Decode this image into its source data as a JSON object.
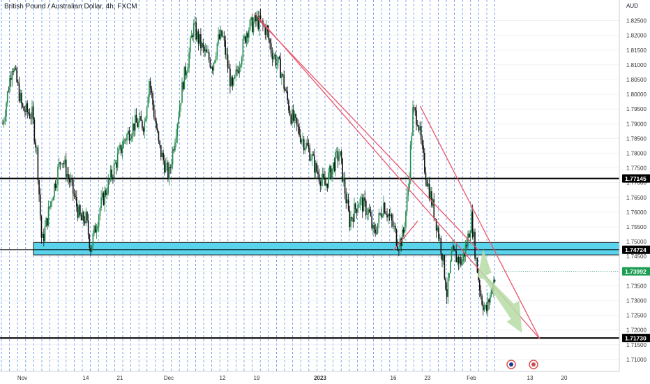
{
  "title": "British Pound / Australian Dollar, 4h, FXCM",
  "currency": "AUD",
  "colors": {
    "grid": "#3d7ce8",
    "up": "#1e8a4a",
    "down": "#111111",
    "trendline": "#e8566b",
    "zone_fill": "#5ad3ec",
    "zone_stroke": "#1a1a1a",
    "hline": "#000000",
    "arrow": "#b7dca6",
    "price_label": "#1b9d52",
    "axis_text": "#333333"
  },
  "chart_data": {
    "type": "candlestick",
    "title": "British Pound / Australian Dollar, 4h, FXCM",
    "ylabel": "AUD",
    "ylim": [
      1.705,
      1.831
    ],
    "y_ticks": [
      "1.82500",
      "1.82000",
      "1.81500",
      "1.81000",
      "1.80500",
      "1.80000",
      "1.79500",
      "1.79000",
      "1.78500",
      "1.78000",
      "1.77500",
      "1.77000",
      "1.76500",
      "1.76000",
      "1.75500",
      "1.75000",
      "1.74500",
      "1.74000",
      "1.73500",
      "1.73000",
      "1.72500",
      "1.72000",
      "1.71500",
      "1.71000"
    ],
    "x_ticks": [
      {
        "label": "Nov",
        "t": 0
      },
      {
        "label": "14",
        "t": 13
      },
      {
        "label": "21",
        "t": 20
      },
      {
        "label": "Dec",
        "t": 30
      },
      {
        "label": "12",
        "t": 41
      },
      {
        "label": "19",
        "t": 48
      },
      {
        "label": "2023",
        "t": 61
      },
      {
        "label": "16",
        "t": 76
      },
      {
        "label": "23",
        "t": 83
      },
      {
        "label": "Feb",
        "t": 92
      },
      {
        "label": "13",
        "t": 104
      },
      {
        "label": "20",
        "t": 111
      }
    ],
    "price_path": [
      [
        -4,
        1.79
      ],
      [
        -2,
        1.811
      ],
      [
        0,
        1.795
      ],
      [
        2,
        1.793
      ],
      [
        3,
        1.78
      ],
      [
        4,
        1.749
      ],
      [
        6,
        1.765
      ],
      [
        8,
        1.779
      ],
      [
        10,
        1.769
      ],
      [
        12,
        1.757
      ],
      [
        13,
        1.758
      ],
      [
        14,
        1.748
      ],
      [
        16,
        1.762
      ],
      [
        19,
        1.776
      ],
      [
        21,
        1.785
      ],
      [
        23,
        1.79
      ],
      [
        25,
        1.79
      ],
      [
        26,
        1.805
      ],
      [
        28,
        1.782
      ],
      [
        30,
        1.772
      ],
      [
        33,
        1.805
      ],
      [
        34,
        1.812
      ],
      [
        35,
        1.823
      ],
      [
        37,
        1.815
      ],
      [
        39,
        1.81
      ],
      [
        40,
        1.818
      ],
      [
        41,
        1.82
      ],
      [
        43,
        1.801
      ],
      [
        44,
        1.808
      ],
      [
        46,
        1.822
      ],
      [
        48,
        1.825
      ],
      [
        50,
        1.822
      ],
      [
        51,
        1.815
      ],
      [
        53,
        1.808
      ],
      [
        54,
        1.8
      ],
      [
        55,
        1.793
      ],
      [
        57,
        1.786
      ],
      [
        59,
        1.78
      ],
      [
        60,
        1.775
      ],
      [
        62,
        1.769
      ],
      [
        64,
        1.777
      ],
      [
        65,
        1.78
      ],
      [
        66,
        1.768
      ],
      [
        67,
        1.757
      ],
      [
        69,
        1.764
      ],
      [
        71,
        1.76
      ],
      [
        72,
        1.752
      ],
      [
        74,
        1.763
      ],
      [
        76,
        1.755
      ],
      [
        77,
        1.749
      ],
      [
        78,
        1.752
      ],
      [
        79,
        1.767
      ],
      [
        80,
        1.794
      ],
      [
        81,
        1.792
      ],
      [
        82,
        1.779
      ],
      [
        83,
        1.77
      ],
      [
        85,
        1.755
      ],
      [
        86,
        1.746
      ],
      [
        87,
        1.732
      ],
      [
        88,
        1.746
      ],
      [
        90,
        1.743
      ],
      [
        91,
        1.749
      ],
      [
        92,
        1.758
      ],
      [
        93,
        1.743
      ],
      [
        94,
        1.731
      ],
      [
        95,
        1.726
      ],
      [
        96,
        1.733
      ],
      [
        97,
        1.74
      ]
    ],
    "horizontal_levels": [
      {
        "price": 1.77145,
        "label": "1.77145"
      },
      {
        "price": 1.7173,
        "label": "1.71730"
      }
    ],
    "support_zone": {
      "low": 1.7455,
      "high": 1.7497,
      "label": "1.74724",
      "level": 1.74724
    },
    "trendlines": [
      {
        "from": [
          47.6,
          1.8275
        ],
        "to": [
          106.0,
          1.717
        ]
      },
      {
        "from": [
          48.3,
          1.8255
        ],
        "to": [
          93.5,
          1.747
        ]
      },
      {
        "from": [
          81.5,
          1.796
        ],
        "to": [
          106.0,
          1.717
        ]
      },
      {
        "from": [
          76.0,
          1.747
        ],
        "to": [
          81.0,
          1.757
        ]
      }
    ],
    "last_price": {
      "price": 1.73992,
      "label": "1.73992"
    },
    "projection_arrow": {
      "from": [
        94.4,
        1.7475
      ],
      "to": [
        101.5,
        1.719
      ]
    }
  }
}
